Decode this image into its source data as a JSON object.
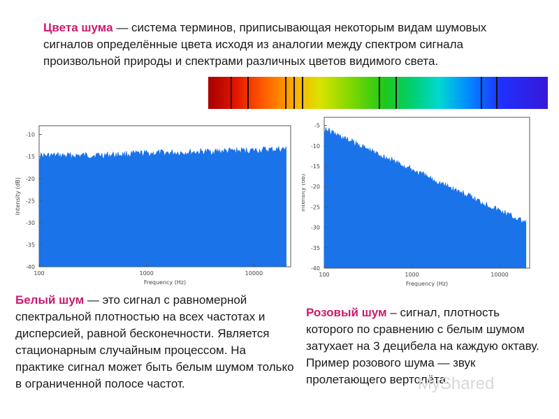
{
  "intro": {
    "term": "Цвета шума",
    "text": " — система терминов, приписывающая некоторым видам шумовых сигналов определённые цвета исходя из аналогии между спектром сигнала произвольной природы и спектрами различных цветов видимого света."
  },
  "white": {
    "term": "Белый шум",
    "text": " — это сигнал с равномерной спектральной плотностью на всех частотах и дисперсией, равной бесконечности. Является стационарным случайным процессом. На практике сигнал может быть белым шумом только в ограниченной полосе частот."
  },
  "pink": {
    "term": "Розовый шум",
    "text": " – сигнал, плотность которого по сравнению с белым шумом затухает на 3 децибела на каждую октаву. Пример розового шума — звук пролетающего вертолёта."
  },
  "watermark": "MyShared",
  "chart_data": [
    {
      "type": "area",
      "xlabel": "Frequency (Hz)",
      "ylabel": "Intensity (dB)",
      "x_scale": "log",
      "xlim": [
        100,
        22000
      ],
      "ylim": [
        -40,
        -8
      ],
      "x_ticks": [
        "100",
        "1000",
        "10000"
      ],
      "y_ticks": [
        "-10",
        "-15",
        "-20",
        "-25",
        "-30",
        "-35",
        "-40"
      ],
      "color": "#1a73e8",
      "x": [
        100,
        200,
        500,
        1000,
        2000,
        5000,
        10000,
        20000
      ],
      "y": [
        -14,
        -14,
        -13.8,
        -13.5,
        -13.3,
        -13,
        -12.8,
        -12.5
      ]
    },
    {
      "type": "area",
      "xlabel": "Frequency (Hz)",
      "ylabel": "Intensity (dB)",
      "x_scale": "log",
      "xlim": [
        100,
        22000
      ],
      "ylim": [
        -40,
        -3
      ],
      "x_ticks": [
        "100",
        "1000",
        "10000"
      ],
      "y_ticks": [
        "-5",
        "-10",
        "-15",
        "-20",
        "-25",
        "-30",
        "-35",
        "-40"
      ],
      "color": "#1a73e8",
      "x": [
        100,
        200,
        500,
        1000,
        2000,
        5000,
        10000,
        20000
      ],
      "y": [
        -5,
        -8,
        -12,
        -15,
        -18,
        -22,
        -25,
        -28
      ]
    }
  ]
}
